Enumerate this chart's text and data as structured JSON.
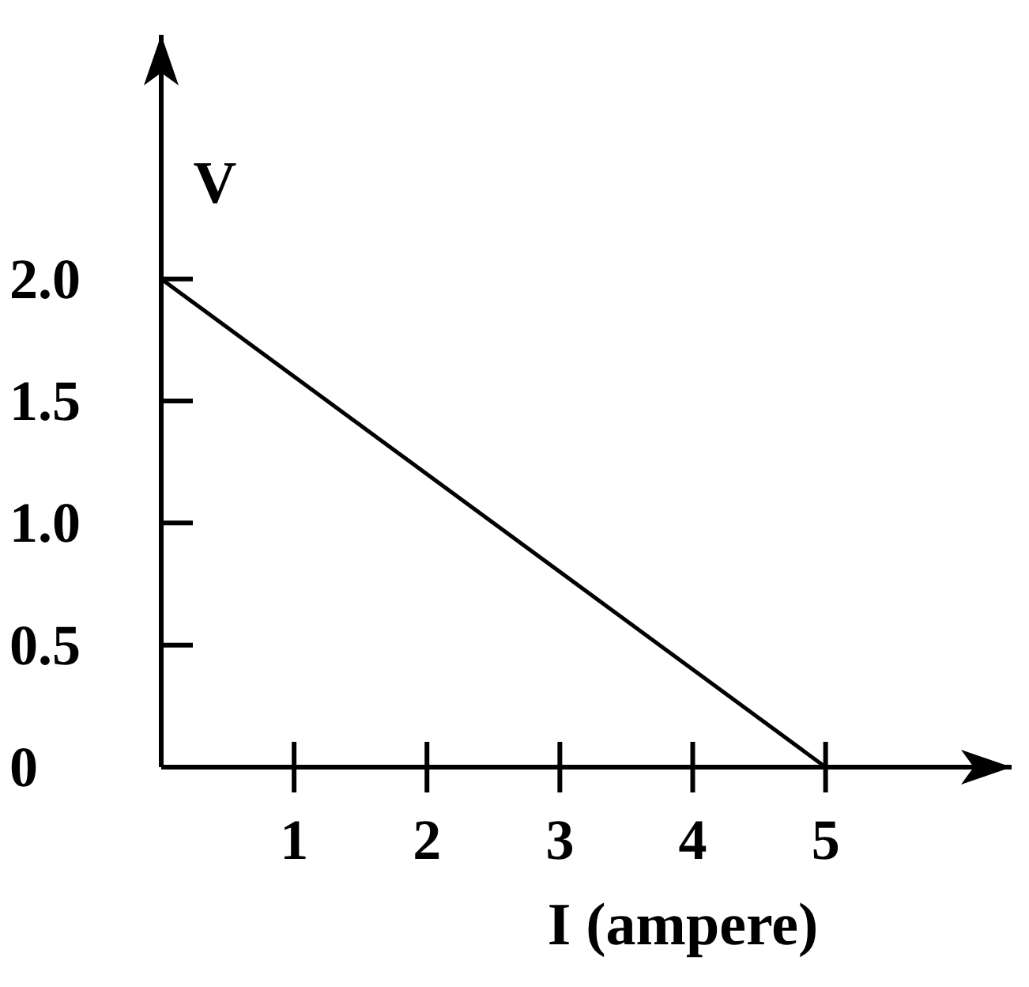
{
  "chart_data": {
    "type": "line",
    "xlabel": "I (ampere)",
    "ylabel": "V",
    "x": [
      0,
      5
    ],
    "series": [
      {
        "color": "#000000",
        "values": [
          2,
          0
        ]
      }
    ],
    "xlim": [
      0,
      6.4
    ],
    "ylim": [
      0,
      3
    ],
    "xticks": [
      1,
      2,
      3,
      4,
      5
    ],
    "yticks": [
      0,
      {
        "value": 0.5,
        "label": "0.5"
      },
      {
        "value": 1,
        "label": "1.0"
      },
      {
        "value": 1.5,
        "label": "1.5"
      },
      {
        "value": 2,
        "label": "2.0"
      }
    ],
    "grid": false,
    "marker": "none",
    "line_style": "solid"
  }
}
